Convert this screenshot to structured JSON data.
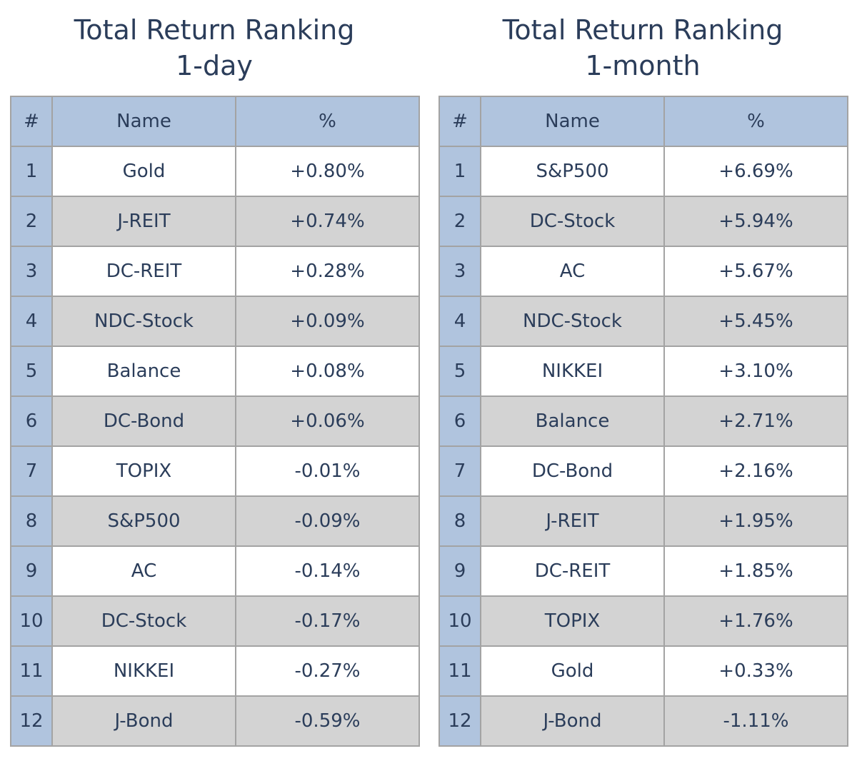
{
  "chart_data": [
    {
      "type": "table",
      "title": [
        "Total Return Ranking",
        "1-day"
      ],
      "columns": [
        "#",
        "Name",
        "%"
      ],
      "rows": [
        {
          "rank": "1",
          "name": "Gold",
          "pct": "+0.80%"
        },
        {
          "rank": "2",
          "name": "J-REIT",
          "pct": "+0.74%"
        },
        {
          "rank": "3",
          "name": "DC-REIT",
          "pct": "+0.28%"
        },
        {
          "rank": "4",
          "name": "NDC-Stock",
          "pct": "+0.09%"
        },
        {
          "rank": "5",
          "name": "Balance",
          "pct": "+0.08%"
        },
        {
          "rank": "6",
          "name": "DC-Bond",
          "pct": "+0.06%"
        },
        {
          "rank": "7",
          "name": "TOPIX",
          "pct": "-0.01%"
        },
        {
          "rank": "8",
          "name": "S&P500",
          "pct": "-0.09%"
        },
        {
          "rank": "9",
          "name": "AC",
          "pct": "-0.14%"
        },
        {
          "rank": "10",
          "name": "DC-Stock",
          "pct": "-0.17%"
        },
        {
          "rank": "11",
          "name": "NIKKEI",
          "pct": "-0.27%"
        },
        {
          "rank": "12",
          "name": "J-Bond",
          "pct": "-0.59%"
        }
      ]
    },
    {
      "type": "table",
      "title": [
        "Total Return Ranking",
        "1-month"
      ],
      "columns": [
        "#",
        "Name",
        "%"
      ],
      "rows": [
        {
          "rank": "1",
          "name": "S&P500",
          "pct": "+6.69%"
        },
        {
          "rank": "2",
          "name": "DC-Stock",
          "pct": "+5.94%"
        },
        {
          "rank": "3",
          "name": "AC",
          "pct": "+5.67%"
        },
        {
          "rank": "4",
          "name": "NDC-Stock",
          "pct": "+5.45%"
        },
        {
          "rank": "5",
          "name": "NIKKEI",
          "pct": "+3.10%"
        },
        {
          "rank": "6",
          "name": "Balance",
          "pct": "+2.71%"
        },
        {
          "rank": "7",
          "name": "DC-Bond",
          "pct": "+2.16%"
        },
        {
          "rank": "8",
          "name": "J-REIT",
          "pct": "+1.95%"
        },
        {
          "rank": "9",
          "name": "DC-REIT",
          "pct": "+1.85%"
        },
        {
          "rank": "10",
          "name": "TOPIX",
          "pct": "+1.76%"
        },
        {
          "rank": "11",
          "name": "Gold",
          "pct": "+0.33%"
        },
        {
          "rank": "12",
          "name": "J-Bond",
          "pct": "-1.11%"
        }
      ]
    }
  ],
  "colors": {
    "header_fill": "#b0c4de",
    "rank_fill": "#b0c4de",
    "row_odd_fill": "#ffffff",
    "row_even_fill": "#d3d3d3",
    "border": "#a3a3a3",
    "text": "#2b3d5a"
  }
}
